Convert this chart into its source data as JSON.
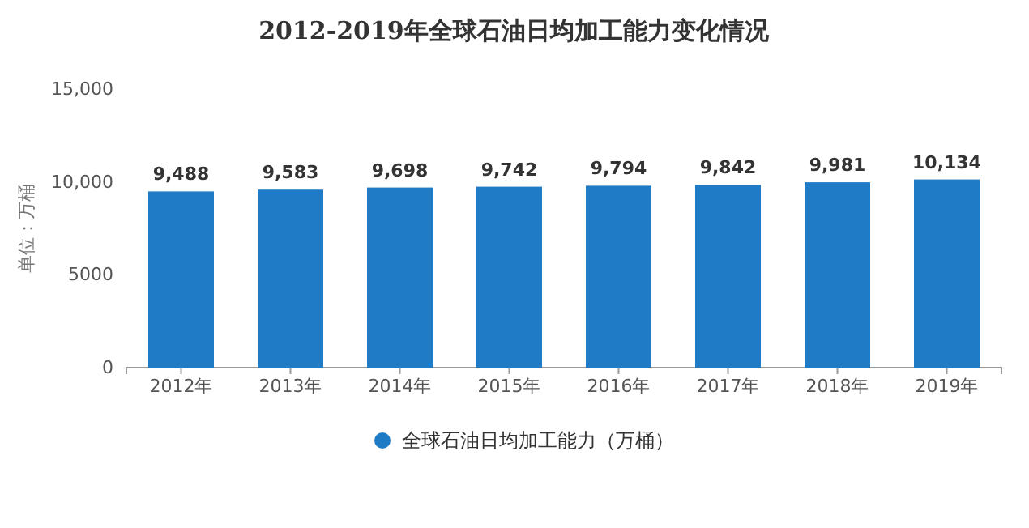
{
  "chart_data": {
    "type": "bar",
    "title": "2012-2019年全球石油日均加工能力变化情况",
    "ylabel": "单位：万桶",
    "categories": [
      "2012年",
      "2013年",
      "2014年",
      "2015年",
      "2016年",
      "2017年",
      "2018年",
      "2019年"
    ],
    "series": [
      {
        "name": "全球石油日均加工能力（万桶）",
        "color": "#1f7bc6",
        "values": [
          9488,
          9583,
          9698,
          9742,
          9794,
          9842,
          9981,
          10134
        ],
        "value_labels": [
          "9,488",
          "9,583",
          "9,698",
          "9,742",
          "9,794",
          "9,842",
          "9,981",
          "10,134"
        ]
      }
    ],
    "ylim": [
      0,
      15000
    ],
    "yticks": [
      0,
      {
        "value": 5000,
        "label": "5000"
      },
      {
        "value": 10000,
        "label": "10,000"
      },
      {
        "value": 15000,
        "label": "15,000"
      }
    ],
    "grid": false,
    "legend": "bottom"
  }
}
